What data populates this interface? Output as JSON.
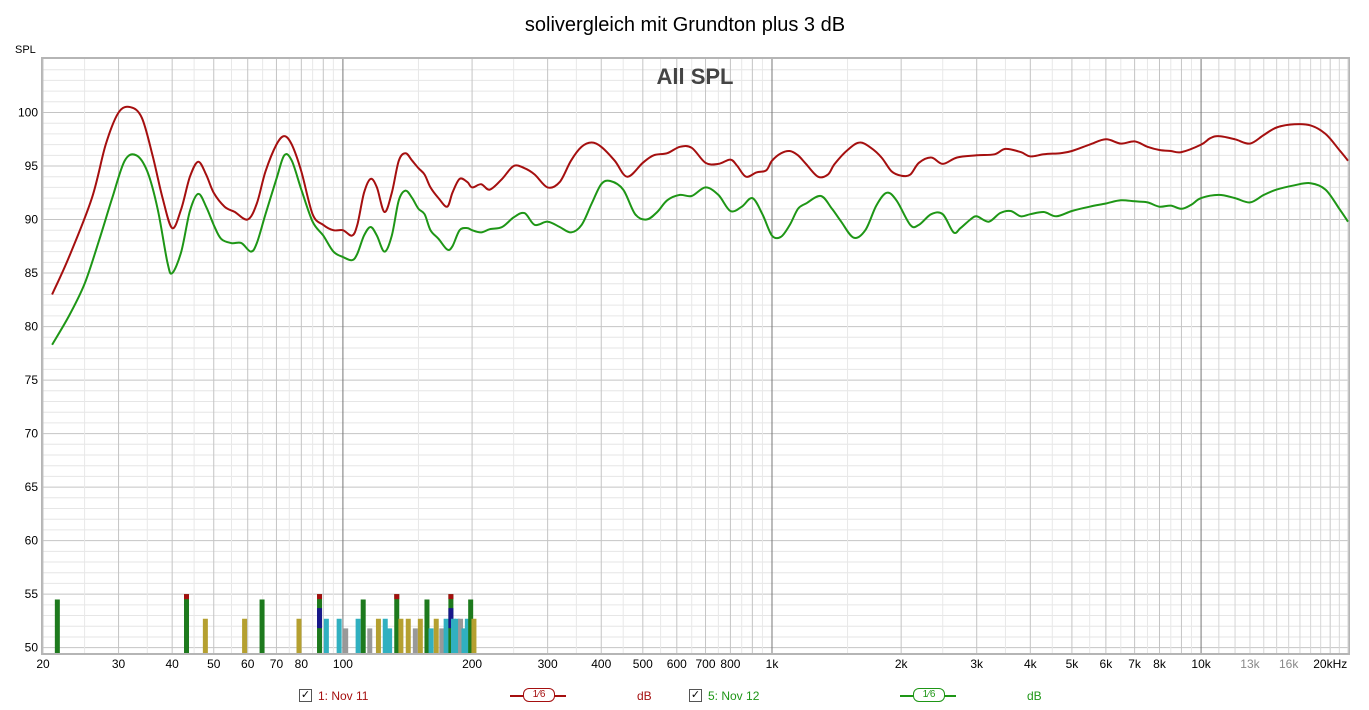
{
  "chart_data": {
    "type": "line",
    "title": "solivergleich mit Grundton plus 3 dB",
    "subtitle": "All SPL",
    "ylabel": "SPL",
    "xlabel": "",
    "x_scale": "log",
    "xlim": [
      20,
      22000
    ],
    "ylim": [
      49.5,
      105
    ],
    "y_ticks": [
      "50",
      "55",
      "60",
      "65",
      "70",
      "75",
      "80",
      "85",
      "90",
      "95",
      "100"
    ],
    "x_ticks": [
      {
        "f": 20,
        "label": "20"
      },
      {
        "f": 30,
        "label": "30"
      },
      {
        "f": 40,
        "label": "40"
      },
      {
        "f": 50,
        "label": "50"
      },
      {
        "f": 60,
        "label": "60"
      },
      {
        "f": 70,
        "label": "70"
      },
      {
        "f": 80,
        "label": "80"
      },
      {
        "f": 100,
        "label": "100"
      },
      {
        "f": 200,
        "label": "200"
      },
      {
        "f": 300,
        "label": "300"
      },
      {
        "f": 400,
        "label": "400"
      },
      {
        "f": 500,
        "label": "500"
      },
      {
        "f": 600,
        "label": "600"
      },
      {
        "f": 700,
        "label": "700"
      },
      {
        "f": 800,
        "label": "800"
      },
      {
        "f": 1000,
        "label": "1k"
      },
      {
        "f": 2000,
        "label": "2k"
      },
      {
        "f": 3000,
        "label": "3k"
      },
      {
        "f": 4000,
        "label": "4k"
      },
      {
        "f": 5000,
        "label": "5k"
      },
      {
        "f": 6000,
        "label": "6k"
      },
      {
        "f": 7000,
        "label": "7k"
      },
      {
        "f": 8000,
        "label": "8k"
      },
      {
        "f": 10000,
        "label": "10k"
      },
      {
        "f": 13000,
        "label": "13k"
      },
      {
        "f": 16000,
        "label": "16k"
      },
      {
        "f": 20000,
        "label": "20kHz"
      }
    ],
    "series": [
      {
        "name": "1: Nov 11",
        "color": "#a50f0f",
        "points": [
          [
            21,
            83
          ],
          [
            23,
            86.5
          ],
          [
            26,
            92
          ],
          [
            28,
            97
          ],
          [
            30,
            100
          ],
          [
            32,
            100.5
          ],
          [
            34,
            99.5
          ],
          [
            36,
            96
          ],
          [
            38,
            92
          ],
          [
            40,
            89.2
          ],
          [
            42,
            91
          ],
          [
            44,
            94
          ],
          [
            46,
            95.4
          ],
          [
            48,
            94.2
          ],
          [
            50,
            92.5
          ],
          [
            53,
            91.2
          ],
          [
            56,
            90.7
          ],
          [
            60,
            90
          ],
          [
            63,
            91.5
          ],
          [
            66,
            94.5
          ],
          [
            70,
            97
          ],
          [
            73,
            97.8
          ],
          [
            76,
            97
          ],
          [
            80,
            94.5
          ],
          [
            85,
            90.5
          ],
          [
            90,
            89.5
          ],
          [
            95,
            89
          ],
          [
            100,
            89
          ],
          [
            105,
            88.5
          ],
          [
            108,
            89.5
          ],
          [
            112,
            92.5
          ],
          [
            116,
            93.8
          ],
          [
            120,
            93
          ],
          [
            125,
            90.7
          ],
          [
            130,
            92.5
          ],
          [
            135,
            95.5
          ],
          [
            140,
            96.2
          ],
          [
            145,
            95.5
          ],
          [
            150,
            94.8
          ],
          [
            155,
            94.2
          ],
          [
            160,
            93
          ],
          [
            167,
            92
          ],
          [
            175,
            91.2
          ],
          [
            180,
            92.5
          ],
          [
            187,
            93.8
          ],
          [
            195,
            93.5
          ],
          [
            200,
            93
          ],
          [
            210,
            93.3
          ],
          [
            220,
            92.8
          ],
          [
            235,
            93.8
          ],
          [
            250,
            95
          ],
          [
            265,
            94.8
          ],
          [
            280,
            94.2
          ],
          [
            300,
            93
          ],
          [
            320,
            93.5
          ],
          [
            340,
            95.5
          ],
          [
            360,
            96.8
          ],
          [
            380,
            97.2
          ],
          [
            400,
            96.8
          ],
          [
            430,
            95.5
          ],
          [
            460,
            94
          ],
          [
            500,
            95.3
          ],
          [
            530,
            96
          ],
          [
            570,
            96.2
          ],
          [
            610,
            96.8
          ],
          [
            650,
            96.7
          ],
          [
            700,
            95.3
          ],
          [
            750,
            95.2
          ],
          [
            800,
            95.6
          ],
          [
            830,
            95
          ],
          [
            870,
            94
          ],
          [
            920,
            94.4
          ],
          [
            970,
            94.6
          ],
          [
            1000,
            95.5
          ],
          [
            1050,
            96.2
          ],
          [
            1100,
            96.4
          ],
          [
            1150,
            96
          ],
          [
            1200,
            95.2
          ],
          [
            1280,
            94
          ],
          [
            1350,
            94.2
          ],
          [
            1400,
            95.2
          ],
          [
            1500,
            96.5
          ],
          [
            1600,
            97.2
          ],
          [
            1700,
            96.7
          ],
          [
            1800,
            95.8
          ],
          [
            1900,
            94.5
          ],
          [
            2000,
            94.1
          ],
          [
            2100,
            94.2
          ],
          [
            2200,
            95.3
          ],
          [
            2350,
            95.8
          ],
          [
            2500,
            95.2
          ],
          [
            2700,
            95.8
          ],
          [
            3000,
            96
          ],
          [
            3300,
            96.1
          ],
          [
            3500,
            96.6
          ],
          [
            3800,
            96.3
          ],
          [
            4000,
            95.9
          ],
          [
            4300,
            96.1
          ],
          [
            4700,
            96.2
          ],
          [
            5000,
            96.4
          ],
          [
            5500,
            97
          ],
          [
            6000,
            97.5
          ],
          [
            6500,
            97.1
          ],
          [
            7000,
            97.3
          ],
          [
            7500,
            96.8
          ],
          [
            8000,
            96.5
          ],
          [
            8500,
            96.4
          ],
          [
            9000,
            96.3
          ],
          [
            10000,
            97
          ],
          [
            10500,
            97.6
          ],
          [
            11000,
            97.8
          ],
          [
            12000,
            97.5
          ],
          [
            13000,
            97.1
          ],
          [
            14000,
            97.9
          ],
          [
            15000,
            98.6
          ],
          [
            16500,
            98.9
          ],
          [
            18000,
            98.8
          ],
          [
            19500,
            98
          ],
          [
            21000,
            96.5
          ],
          [
            22000,
            95.5
          ]
        ]
      },
      {
        "name": "5: Nov 12",
        "color": "#1e9616",
        "points": [
          [
            21,
            78.3
          ],
          [
            23,
            81
          ],
          [
            25,
            84
          ],
          [
            27,
            88
          ],
          [
            29,
            92
          ],
          [
            31,
            95.5
          ],
          [
            33,
            96
          ],
          [
            35,
            94.5
          ],
          [
            37,
            91
          ],
          [
            39,
            86
          ],
          [
            40,
            85
          ],
          [
            42,
            87
          ],
          [
            44,
            90.8
          ],
          [
            46,
            92.4
          ],
          [
            48,
            91.2
          ],
          [
            50,
            89.5
          ],
          [
            52,
            88.2
          ],
          [
            55,
            87.8
          ],
          [
            58,
            87.8
          ],
          [
            61,
            87
          ],
          [
            63,
            87.8
          ],
          [
            66,
            90.5
          ],
          [
            70,
            93.8
          ],
          [
            73,
            96
          ],
          [
            76,
            95.5
          ],
          [
            80,
            92.8
          ],
          [
            85,
            89.8
          ],
          [
            90,
            88.5
          ],
          [
            95,
            87
          ],
          [
            100,
            86.5
          ],
          [
            105,
            86.2
          ],
          [
            108,
            86.8
          ],
          [
            112,
            88.5
          ],
          [
            116,
            89.3
          ],
          [
            120,
            88.5
          ],
          [
            125,
            87
          ],
          [
            130,
            88.5
          ],
          [
            135,
            91.8
          ],
          [
            140,
            92.7
          ],
          [
            145,
            92
          ],
          [
            150,
            91
          ],
          [
            155,
            90.5
          ],
          [
            160,
            89
          ],
          [
            167,
            88.2
          ],
          [
            175,
            87.2
          ],
          [
            180,
            87.5
          ],
          [
            187,
            89
          ],
          [
            195,
            89.2
          ],
          [
            200,
            89
          ],
          [
            210,
            88.8
          ],
          [
            220,
            89.1
          ],
          [
            235,
            89.3
          ],
          [
            250,
            90.2
          ],
          [
            265,
            90.6
          ],
          [
            280,
            89.5
          ],
          [
            300,
            89.8
          ],
          [
            320,
            89.3
          ],
          [
            340,
            88.8
          ],
          [
            360,
            89.5
          ],
          [
            380,
            91.5
          ],
          [
            400,
            93.3
          ],
          [
            420,
            93.6
          ],
          [
            450,
            92.8
          ],
          [
            480,
            90.5
          ],
          [
            510,
            90
          ],
          [
            540,
            90.7
          ],
          [
            570,
            91.8
          ],
          [
            610,
            92.3
          ],
          [
            650,
            92.2
          ],
          [
            700,
            93
          ],
          [
            750,
            92.3
          ],
          [
            800,
            90.8
          ],
          [
            850,
            91.2
          ],
          [
            900,
            92
          ],
          [
            950,
            90.5
          ],
          [
            1000,
            88.5
          ],
          [
            1050,
            88.4
          ],
          [
            1100,
            89.5
          ],
          [
            1150,
            91
          ],
          [
            1200,
            91.5
          ],
          [
            1300,
            92.2
          ],
          [
            1380,
            91
          ],
          [
            1450,
            89.8
          ],
          [
            1550,
            88.3
          ],
          [
            1650,
            89
          ],
          [
            1750,
            91.3
          ],
          [
            1850,
            92.5
          ],
          [
            1950,
            91.8
          ],
          [
            2100,
            89.5
          ],
          [
            2200,
            89.5
          ],
          [
            2350,
            90.5
          ],
          [
            2500,
            90.5
          ],
          [
            2650,
            88.8
          ],
          [
            2750,
            89.2
          ],
          [
            2900,
            90
          ],
          [
            3000,
            90.3
          ],
          [
            3200,
            89.8
          ],
          [
            3400,
            90.6
          ],
          [
            3600,
            90.8
          ],
          [
            3800,
            90.3
          ],
          [
            4000,
            90.5
          ],
          [
            4300,
            90.7
          ],
          [
            4600,
            90.3
          ],
          [
            5000,
            90.8
          ],
          [
            5500,
            91.2
          ],
          [
            6000,
            91.5
          ],
          [
            6500,
            91.8
          ],
          [
            7000,
            91.7
          ],
          [
            7500,
            91.6
          ],
          [
            8000,
            91.2
          ],
          [
            8500,
            91.3
          ],
          [
            9000,
            91
          ],
          [
            9500,
            91.4
          ],
          [
            10000,
            92
          ],
          [
            11000,
            92.3
          ],
          [
            12000,
            92
          ],
          [
            13000,
            91.6
          ],
          [
            14000,
            92.3
          ],
          [
            15000,
            92.8
          ],
          [
            16500,
            93.2
          ],
          [
            18000,
            93.4
          ],
          [
            19500,
            92.8
          ],
          [
            21000,
            91
          ],
          [
            22000,
            89.8
          ]
        ]
      }
    ],
    "markers": [
      {
        "f": 21.6,
        "top": 54.5,
        "color": "#1d7a1d"
      },
      {
        "f": 43.2,
        "top": 55,
        "color": "#1d7a1d",
        "cap": "#a50f0f"
      },
      {
        "f": 47.8,
        "top": 52.7,
        "color": "#b5a030"
      },
      {
        "f": 59,
        "top": 52.7,
        "color": "#b5a030"
      },
      {
        "f": 64.8,
        "top": 54.5,
        "color": "#1d7a1d"
      },
      {
        "f": 79,
        "top": 52.7,
        "color": "#b5a030"
      },
      {
        "f": 88.2,
        "top": 55,
        "color": "#1d7a1d",
        "cap": "#a50f0f",
        "inner": "#18188a"
      },
      {
        "f": 91.5,
        "top": 52.7,
        "color": "#30b0c0"
      },
      {
        "f": 98,
        "top": 52.7,
        "color": "#30b0c0"
      },
      {
        "f": 101.5,
        "top": 51.8,
        "color": "#999999"
      },
      {
        "f": 108.5,
        "top": 52.7,
        "color": "#30b0c0"
      },
      {
        "f": 111.5,
        "top": 54.5,
        "color": "#1d7a1d"
      },
      {
        "f": 115.5,
        "top": 51.8,
        "color": "#999999"
      },
      {
        "f": 121,
        "top": 52.7,
        "color": "#b5a030"
      },
      {
        "f": 125.5,
        "top": 52.7,
        "color": "#30b0c0"
      },
      {
        "f": 128.5,
        "top": 51.8,
        "color": "#30b0c0"
      },
      {
        "f": 133.5,
        "top": 55,
        "color": "#1d7a1d",
        "cap": "#a50f0f"
      },
      {
        "f": 136.5,
        "top": 52.7,
        "color": "#b5a030"
      },
      {
        "f": 142,
        "top": 52.7,
        "color": "#b5a030"
      },
      {
        "f": 147.5,
        "top": 51.8,
        "color": "#999999"
      },
      {
        "f": 151.5,
        "top": 52.7,
        "color": "#b5a030"
      },
      {
        "f": 157,
        "top": 54.5,
        "color": "#1d7a1d"
      },
      {
        "f": 160.5,
        "top": 51.8,
        "color": "#30b0c0"
      },
      {
        "f": 165,
        "top": 52.7,
        "color": "#b5a030"
      },
      {
        "f": 170,
        "top": 51.8,
        "color": "#999999"
      },
      {
        "f": 174,
        "top": 52.7,
        "color": "#30b0c0"
      },
      {
        "f": 178.5,
        "top": 55,
        "color": "#1d7a1d",
        "cap": "#a50f0f",
        "inner": "#18188a"
      },
      {
        "f": 181,
        "top": 52.7,
        "color": "#30b0c0"
      },
      {
        "f": 184.5,
        "top": 52.7,
        "color": "#30b0c0"
      },
      {
        "f": 188,
        "top": 52.7,
        "color": "#999999"
      },
      {
        "f": 191.5,
        "top": 51.8,
        "color": "#30b0c0"
      },
      {
        "f": 195,
        "top": 52.7,
        "color": "#30b0c0"
      },
      {
        "f": 198.5,
        "top": 54.5,
        "color": "#1d7a1d"
      },
      {
        "f": 202,
        "top": 52.7,
        "color": "#b5a030"
      }
    ]
  },
  "legend": [
    {
      "checkbox": "✓",
      "label": "1: Nov 11",
      "smoothing": "1⁄6",
      "unit": "dB",
      "color": "#a50f0f"
    },
    {
      "checkbox": "✓",
      "label": "5: Nov 12",
      "smoothing": "1⁄6",
      "unit": "dB",
      "color": "#1e9616"
    }
  ]
}
